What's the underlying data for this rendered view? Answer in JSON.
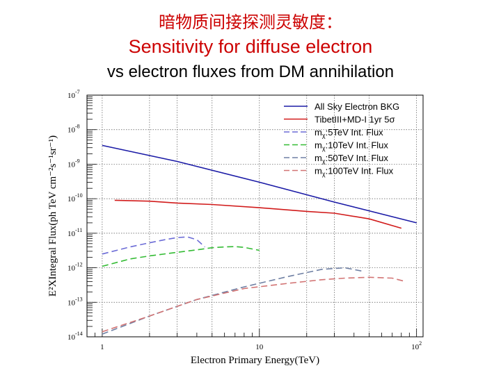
{
  "header": {
    "title_cn": "暗物质间接探测灵敏度：",
    "title_en": "Sensitivity for diffuse electron",
    "subtitle": "vs electron fluxes from DM annihilation"
  },
  "chart_data": {
    "type": "line",
    "xlabel": "Electron Primary Energy(TeV)",
    "ylabel": "E²XIntegral Flux(ph TeV cm⁻²s⁻¹sr⁻¹)",
    "xscale": "log",
    "yscale": "log",
    "xlim": [
      0.8,
      110
    ],
    "ylim": [
      1e-14,
      1e-07
    ],
    "xticks": [
      {
        "value": 1,
        "label": "1"
      },
      {
        "value": 10,
        "label": "10"
      },
      {
        "value": 100,
        "label": "10",
        "sup": "2"
      }
    ],
    "yticks": [
      {
        "value": 1e-07,
        "label": "10",
        "sup": "-7"
      },
      {
        "value": 1e-08,
        "label": "10",
        "sup": "-8"
      },
      {
        "value": 1e-09,
        "label": "10",
        "sup": "-9"
      },
      {
        "value": 1e-10,
        "label": "10",
        "sup": "-10"
      },
      {
        "value": 1e-11,
        "label": "10",
        "sup": "-11"
      },
      {
        "value": 1e-12,
        "label": "10",
        "sup": "-12"
      },
      {
        "value": 1e-13,
        "label": "10",
        "sup": "-13"
      },
      {
        "value": 1e-14,
        "label": "10",
        "sup": "-14"
      }
    ],
    "grid": true,
    "legend_position": "top-right",
    "series": [
      {
        "name": "All Sky Electron BKG",
        "color": "#1a1aa6",
        "dash": "solid",
        "x": [
          1,
          3,
          10,
          30,
          100
        ],
        "y": [
          3.5e-09,
          1.2e-09,
          3e-10,
          8e-11,
          2e-11
        ]
      },
      {
        "name": "TibetIII+MD-I 1yr 5σ",
        "color": "#d11a1a",
        "dash": "solid",
        "x": [
          1.2,
          2,
          3,
          5,
          10,
          20,
          30,
          50,
          80
        ],
        "y": [
          9e-11,
          8.5e-11,
          7.5e-11,
          6.8e-11,
          5.5e-11,
          4.3e-11,
          3.8e-11,
          2.6e-11,
          1.4e-11
        ]
      },
      {
        "name": "m_χ:5TeV Int. Flux",
        "color": "#6b6bd6",
        "dash": "long",
        "x": [
          1,
          1.5,
          2,
          2.5,
          3,
          3.5,
          4,
          4.5
        ],
        "y": [
          2.5e-12,
          4e-12,
          5.3e-12,
          6.5e-12,
          7.5e-12,
          7.8e-12,
          6.5e-12,
          4e-12
        ]
      },
      {
        "name": "m_χ:10TeV Int. Flux",
        "color": "#33bb33",
        "dash": "long",
        "x": [
          1,
          1.5,
          2,
          3,
          4,
          5,
          6,
          7,
          8,
          9,
          10
        ],
        "y": [
          1.1e-12,
          1.8e-12,
          2.2e-12,
          2.8e-12,
          3.3e-12,
          3.8e-12,
          4e-12,
          4.1e-12,
          3.9e-12,
          3.5e-12,
          3.2e-12
        ]
      },
      {
        "name": "m_χ:50TeV Int. Flux",
        "color": "#6e7fa3",
        "dash": "long",
        "x": [
          1,
          2,
          4,
          8,
          15,
          25,
          35,
          45
        ],
        "y": [
          1.2e-14,
          4e-14,
          1.2e-13,
          2.8e-13,
          5.5e-13,
          9e-13,
          1e-12,
          8e-13
        ]
      },
      {
        "name": "m_χ:100TeV Int. Flux",
        "color": "#d27373",
        "dash": "long",
        "x": [
          1,
          2,
          4,
          8,
          15,
          25,
          35,
          50,
          70,
          85
        ],
        "y": [
          1.4e-14,
          4e-14,
          1.2e-13,
          2.5e-13,
          3.5e-13,
          4.5e-13,
          5e-13,
          5.3e-13,
          5e-13,
          4e-13
        ]
      }
    ],
    "legend_labels": [
      {
        "pre": "All Sky Electron BKG"
      },
      {
        "pre": "TibetIII+MD-I 1yr 5σ"
      },
      {
        "pre": "m",
        "sub": "χ",
        "post": ":5TeV Int. Flux"
      },
      {
        "pre": "m",
        "sub": "χ",
        "post": ":10TeV Int. Flux"
      },
      {
        "pre": "m",
        "sub": "χ",
        "post": ":50TeV Int. Flux"
      },
      {
        "pre": "m",
        "sub": "χ",
        "post": ":100TeV Int. Flux"
      }
    ]
  }
}
